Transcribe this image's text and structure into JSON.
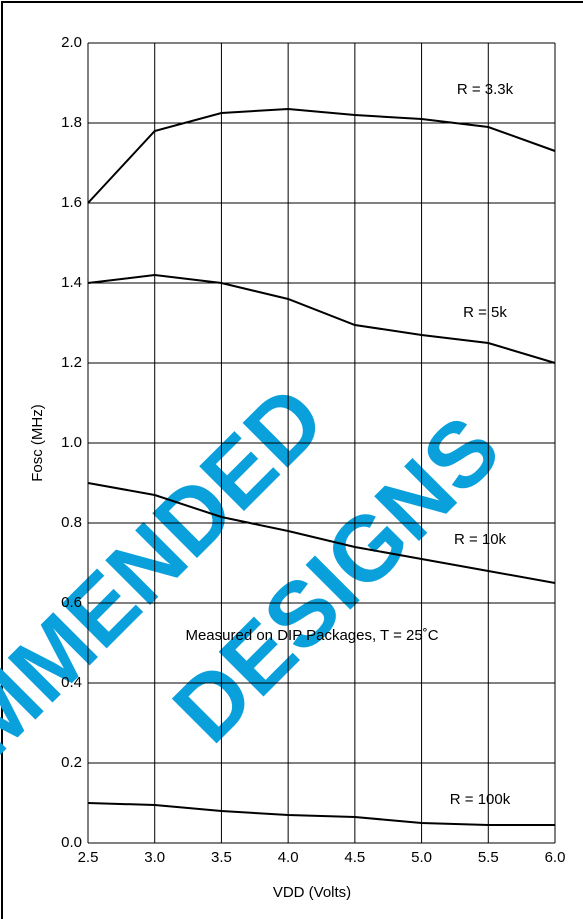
{
  "chart_data": {
    "type": "line",
    "x_label": "VDD (Volts)",
    "y_label": "Fosc (MHz)",
    "annotation": "Measured on DIP Packages, T = 25˚C",
    "watermark": [
      "RECOMMENDED",
      "DESIGNS"
    ],
    "x": [
      2.5,
      3.0,
      3.5,
      4.0,
      4.5,
      5.0,
      5.5,
      6.0
    ],
    "xlim": [
      2.5,
      6.0
    ],
    "xticks": [
      2.5,
      {
        "value": 3.0,
        "label": "3.0"
      },
      3.5,
      {
        "value": 4.0,
        "label": "4.0"
      },
      4.5,
      {
        "value": 5.0,
        "label": "5.0"
      },
      5.5,
      {
        "value": 6.0,
        "label": "6.0"
      }
    ],
    "ylim": [
      0,
      2.0
    ],
    "yticks": [
      {
        "value": 0,
        "label": "0.0"
      },
      0.2,
      0.4,
      0.6,
      0.8,
      {
        "value": 1.0,
        "label": "1.0"
      },
      1.2,
      1.4,
      1.6,
      1.8,
      {
        "value": 2.0,
        "label": "2.0"
      }
    ],
    "grid": true,
    "series": [
      {
        "name": "R = 3.3k",
        "color": "#000000",
        "values": [
          1.6,
          1.78,
          1.825,
          1.835,
          1.82,
          1.81,
          1.79,
          1.73
        ]
      },
      {
        "name": "R = 5k",
        "color": "#000000",
        "values": [
          1.4,
          1.42,
          1.4,
          1.36,
          1.295,
          1.27,
          1.25,
          1.2
        ]
      },
      {
        "name": "R = 10k",
        "color": "#000000",
        "values": [
          0.9,
          0.87,
          0.815,
          0.78,
          0.74,
          0.71,
          0.68,
          0.65
        ]
      },
      {
        "name": "R = 100k",
        "color": "#000000",
        "values": [
          0.1,
          0.095,
          0.08,
          0.07,
          0.065,
          0.05,
          0.045,
          0.045
        ]
      }
    ]
  }
}
